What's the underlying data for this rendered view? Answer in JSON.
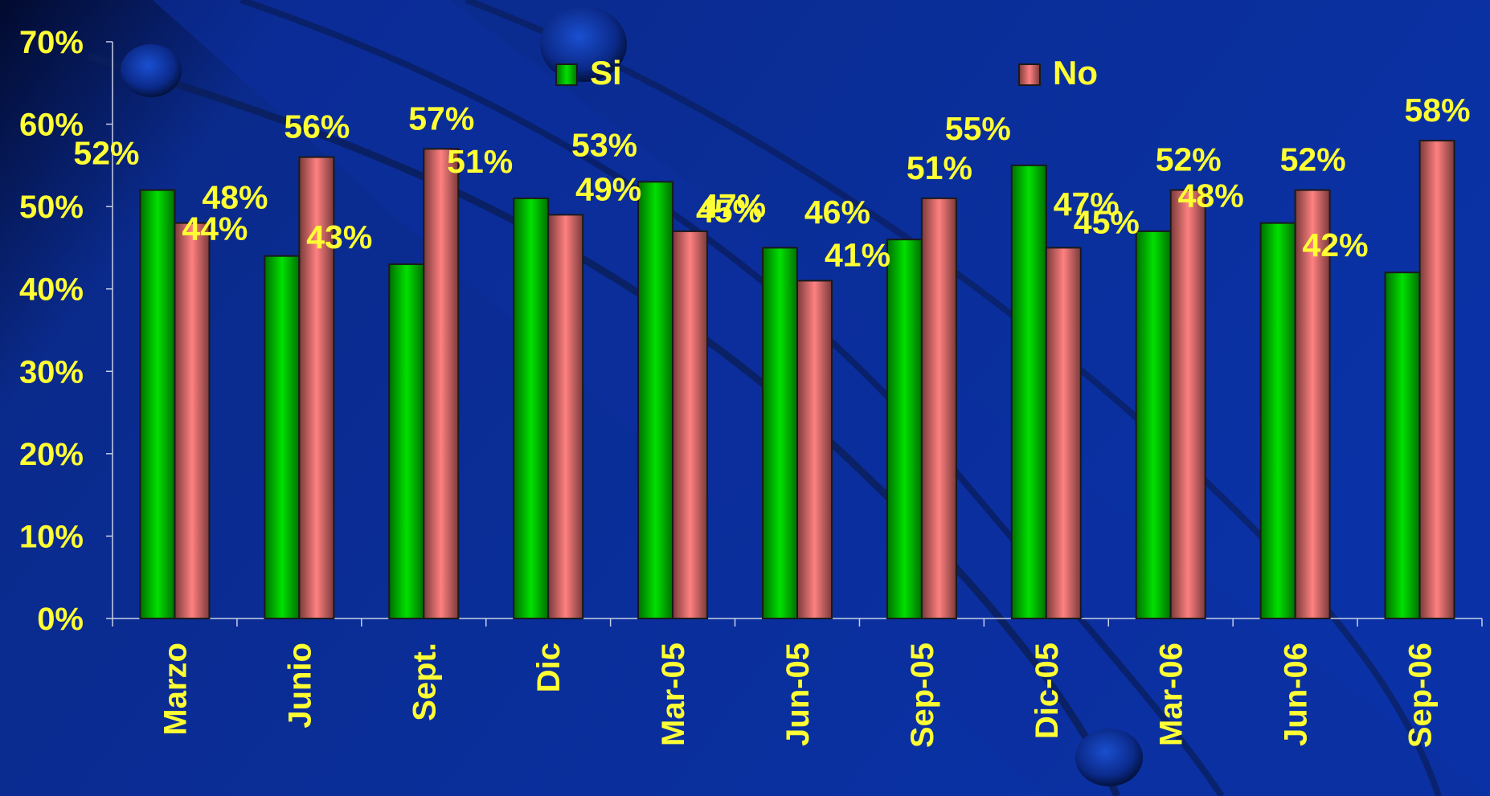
{
  "chart_data": {
    "type": "bar",
    "title": "",
    "xlabel": "",
    "ylabel": "",
    "ylim": [
      0,
      70
    ],
    "yticks": [
      0,
      10,
      20,
      30,
      40,
      50,
      60,
      70
    ],
    "ytick_labels": [
      "0%",
      "10%",
      "20%",
      "30%",
      "40%",
      "50%",
      "60%",
      "70%"
    ],
    "categories": [
      "Marzo",
      "Junio",
      "Sept.",
      "Dic",
      "Mar-05",
      "Jun-05",
      "Sep-05",
      "Dic-05",
      "Mar-06",
      "Jun-06",
      "Sep-06"
    ],
    "series": [
      {
        "name": "Si",
        "color": "#00cc00",
        "values": [
          52,
          44,
          43,
          51,
          53,
          45,
          46,
          55,
          47,
          48,
          42
        ],
        "labels": [
          "52%",
          "44%",
          "43%",
          "51%",
          "53%",
          "45%",
          "46%",
          "55%",
          "47%",
          "48%",
          "42%"
        ]
      },
      {
        "name": "No",
        "color": "#ff8080",
        "values": [
          48,
          56,
          57,
          49,
          47,
          41,
          51,
          45,
          52,
          52,
          58
        ],
        "labels": [
          "48%",
          "56%",
          "57%",
          "49%",
          "47%",
          "41%",
          "51%",
          "45%",
          "52%",
          "52%",
          "58%"
        ]
      }
    ],
    "legend": "top",
    "grid": false,
    "label_color": "#ffff33",
    "background_color": "#0a2a8c"
  }
}
